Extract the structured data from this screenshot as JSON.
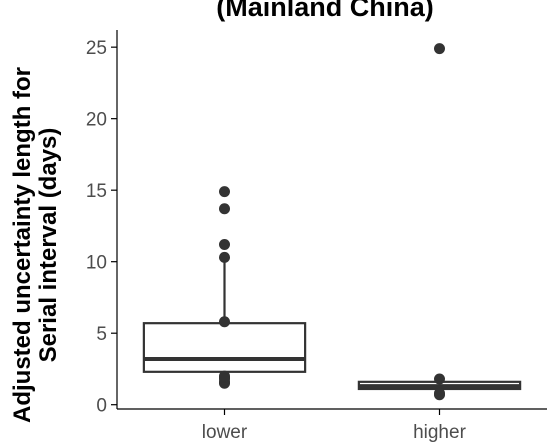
{
  "chart_data": {
    "type": "box",
    "title": "(Mainland China)",
    "ylabel_line1": "Adjusted uncertainty length for",
    "ylabel_line2": "Serial interval (days)",
    "xlabel": "",
    "ylim": [
      -0.3,
      26.2
    ],
    "y_ticks": [
      "0",
      "5",
      "10",
      "15",
      "20",
      "25"
    ],
    "categories": [
      "lower",
      "higher"
    ],
    "boxes": [
      {
        "category": "lower",
        "whisker_low": 1.5,
        "q1": 2.3,
        "median": 3.2,
        "q3": 5.7,
        "whisker_high": 10.3,
        "outliers": [
          1.5,
          1.6,
          1.8,
          1.9,
          2.0,
          5.8,
          10.3,
          11.2,
          13.7,
          14.9
        ]
      },
      {
        "category": "higher",
        "whisker_low": 0.7,
        "q1": 1.1,
        "median": 1.3,
        "q3": 1.6,
        "whisker_high": 1.8,
        "outliers": [
          0.7,
          0.8,
          1.8,
          24.9
        ]
      }
    ],
    "grid": false,
    "legend": "none"
  }
}
